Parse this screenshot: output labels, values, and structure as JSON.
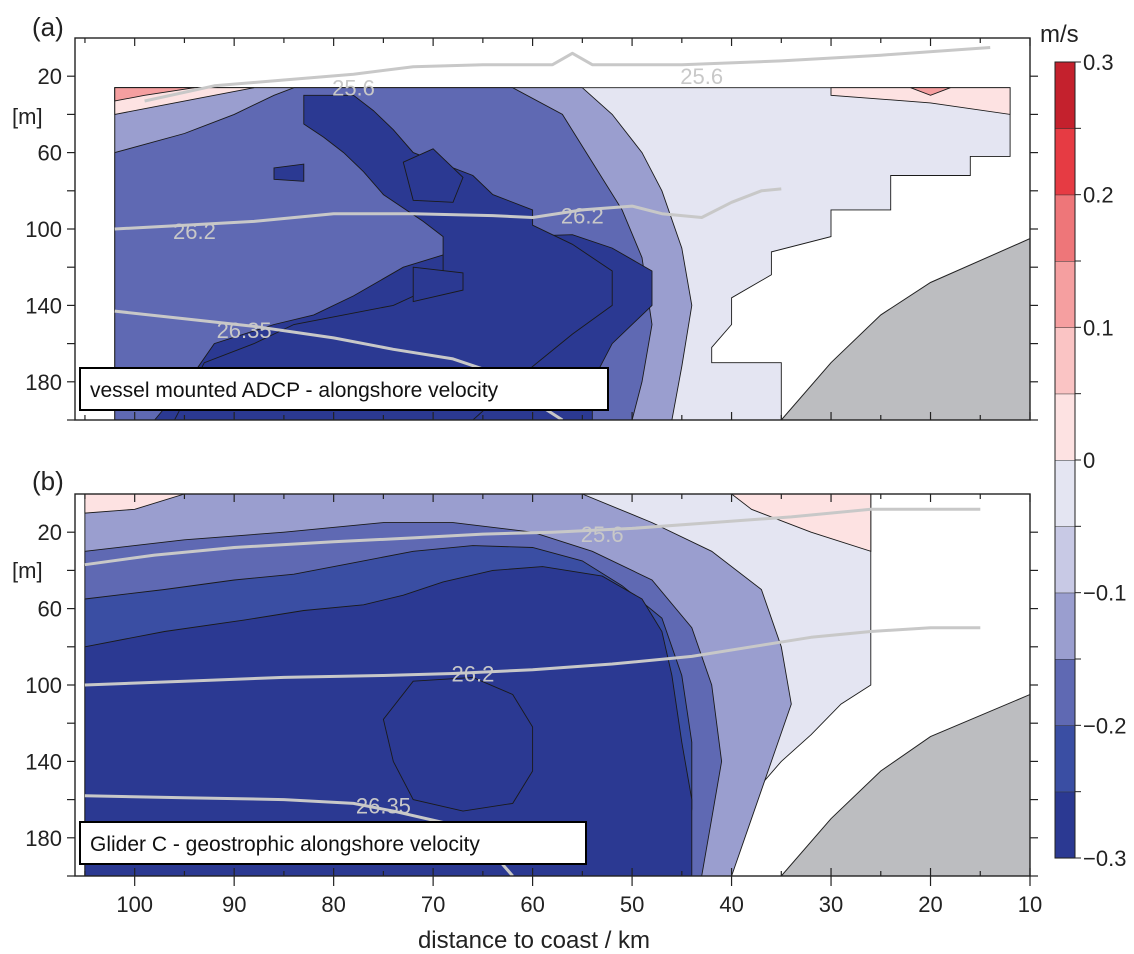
{
  "chart_data": [
    {
      "panel_label": "(a)",
      "type": "contour",
      "caption": "vessel mounted ADCP - alongshore velocity",
      "xlim": [
        106,
        10
      ],
      "ylim": [
        200,
        0
      ],
      "depth_ticks": [
        "20",
        "60",
        "100",
        "140",
        "180"
      ],
      "depth_unit": "[m]",
      "data_extent_x": [
        102,
        12
      ],
      "data_top_depth": 26,
      "isopycnals": [
        {
          "label": "25.6",
          "points": [
            [
              99,
              33
            ],
            [
              92,
              25
            ],
            [
              85,
              22
            ],
            [
              78,
              19
            ],
            [
              72,
              15
            ],
            [
              65,
              14
            ],
            [
              58,
              14
            ],
            [
              56,
              8
            ],
            [
              54,
              14
            ],
            [
              45,
              14
            ],
            [
              35,
              12
            ],
            [
              25,
              9
            ],
            [
              14,
              5
            ]
          ]
        },
        {
          "label": "26.2",
          "points": [
            [
              102,
              100
            ],
            [
              95,
              98
            ],
            [
              88,
              96
            ],
            [
              80,
              92
            ],
            [
              72,
              92
            ],
            [
              64,
              93
            ],
            [
              60,
              94
            ],
            [
              55,
              90
            ],
            [
              50,
              88
            ],
            [
              47,
              92
            ],
            [
              43,
              94
            ],
            [
              40,
              86
            ],
            [
              37,
              80
            ],
            [
              35,
              79
            ]
          ]
        },
        {
          "label": "26.35",
          "points": [
            [
              102,
              143
            ],
            [
              95,
              147
            ],
            [
              88,
              151
            ],
            [
              80,
              157
            ],
            [
              74,
              163
            ],
            [
              68,
              168
            ],
            [
              64,
              175
            ],
            [
              60,
              190
            ],
            [
              57,
              200
            ]
          ]
        }
      ],
      "isopycnal_label_positions": [
        [
          78,
          26
        ],
        [
          43,
          20
        ],
        [
          94,
          101
        ],
        [
          55,
          93
        ],
        [
          89,
          153
        ]
      ],
      "bathymetry": [
        [
          35,
          200
        ],
        [
          30,
          170
        ],
        [
          25,
          145
        ],
        [
          20,
          128
        ],
        [
          10,
          105
        ],
        [
          10,
          200
        ]
      ],
      "velocity_levels": [
        {
          "max": -0.25,
          "region": [
            [
              98,
              200
            ],
            [
              94,
              175
            ],
            [
              92,
              160
            ],
            [
              86,
              150
            ],
            [
              82,
              145
            ],
            [
              78,
              135
            ],
            [
              73,
              120
            ],
            [
              68,
              112
            ],
            [
              62,
              104
            ],
            [
              56,
              103
            ],
            [
              52,
              110
            ],
            [
              48,
              122
            ],
            [
              48,
              140
            ],
            [
              52,
              160
            ],
            [
              54,
              180
            ],
            [
              54,
              200
            ]
          ]
        },
        {
          "max": -0.25,
          "region": [
            [
              83,
              45
            ],
            [
              81,
              52
            ],
            [
              79,
              60
            ],
            [
              77,
              70
            ],
            [
              75,
              82
            ],
            [
              71,
              96
            ],
            [
              69,
              104
            ],
            [
              69,
              128
            ],
            [
              74,
              140
            ],
            [
              84,
              150
            ],
            [
              88,
              160
            ],
            [
              93,
              170
            ],
            [
              96,
              200
            ],
            [
              66,
              200
            ],
            [
              60,
              172
            ],
            [
              56,
              155
            ],
            [
              52,
              140
            ],
            [
              52,
              122
            ],
            [
              56,
              108
            ],
            [
              60,
              98
            ],
            [
              60,
              90
            ],
            [
              64,
              82
            ],
            [
              66,
              72
            ],
            [
              72,
              60
            ],
            [
              74,
              48
            ],
            [
              76,
              38
            ],
            [
              78,
              30
            ],
            [
              83,
              30
            ]
          ]
        },
        {
          "max": -0.3,
          "region": [
            [
              73,
              65
            ],
            [
              70,
              58
            ],
            [
              67,
              73
            ],
            [
              68,
              86
            ],
            [
              72,
              85
            ]
          ]
        },
        {
          "max": -0.3,
          "region": [
            [
              72,
              120
            ],
            [
              67,
              123
            ],
            [
              67,
              132
            ],
            [
              72,
              138
            ]
          ]
        },
        {
          "max": -0.3,
          "region": [
            [
              86,
              68
            ],
            [
              83,
              66
            ],
            [
              83,
              75
            ],
            [
              86,
              74
            ]
          ]
        }
      ]
    },
    {
      "panel_label": "(b)",
      "type": "contour",
      "caption": "Glider C - geostrophic alongshore velocity",
      "xlim": [
        106,
        10
      ],
      "ylim": [
        200,
        0
      ],
      "depth_ticks": [
        "20",
        "60",
        "100",
        "140",
        "180"
      ],
      "depth_unit": "[m]",
      "data_extent_x": [
        105,
        26
      ],
      "data_top_depth": 0,
      "isopycnals": [
        {
          "label": "25.6",
          "points": [
            [
              105,
              37
            ],
            [
              98,
              32
            ],
            [
              90,
              28
            ],
            [
              80,
              25
            ],
            [
              72,
              23
            ],
            [
              65,
              21
            ],
            [
              58,
              20
            ],
            [
              50,
              18
            ],
            [
              42,
              15
            ],
            [
              34,
              12
            ],
            [
              26,
              8
            ],
            [
              15,
              8
            ]
          ]
        },
        {
          "label": "26.2",
          "points": [
            [
              105,
              100
            ],
            [
              95,
              98
            ],
            [
              85,
              96
            ],
            [
              75,
              95
            ],
            [
              68,
              94
            ],
            [
              60,
              92
            ],
            [
              52,
              89
            ],
            [
              44,
              85
            ],
            [
              38,
              80
            ],
            [
              32,
              75
            ],
            [
              26,
              72
            ],
            [
              20,
              70
            ],
            [
              15,
              70
            ]
          ]
        },
        {
          "label": "26.35",
          "points": [
            [
              105,
              158
            ],
            [
              95,
              159
            ],
            [
              85,
              160
            ],
            [
              78,
              162
            ],
            [
              74,
              166
            ],
            [
              69,
              172
            ],
            [
              66,
              178
            ],
            [
              64,
              188
            ],
            [
              62,
              200
            ]
          ]
        }
      ],
      "isopycnal_label_positions": [
        [
          53,
          21
        ],
        [
          66,
          94
        ],
        [
          75,
          163
        ]
      ],
      "bathymetry": [
        [
          35,
          200
        ],
        [
          30,
          170
        ],
        [
          25,
          145
        ],
        [
          20,
          127
        ],
        [
          10,
          105
        ],
        [
          10,
          200
        ]
      ],
      "velocity_levels": [
        {
          "max": -0.25,
          "region": [
            [
              105,
              80
            ],
            [
              97,
              72
            ],
            [
              89,
              66
            ],
            [
              83,
              61
            ],
            [
              77,
              58
            ],
            [
              73,
              53
            ],
            [
              69,
              46
            ],
            [
              64,
              40
            ],
            [
              59,
              38
            ],
            [
              53,
              43
            ],
            [
              49,
              55
            ],
            [
              47,
              72
            ],
            [
              46,
              95
            ],
            [
              45,
              130
            ],
            [
              44,
              160
            ],
            [
              44,
              200
            ],
            [
              105,
              200
            ]
          ]
        },
        {
          "max": -0.3,
          "region": [
            [
              72,
              98
            ],
            [
              66,
              96
            ],
            [
              62,
              105
            ],
            [
              60,
              122
            ],
            [
              60,
              145
            ],
            [
              62,
              162
            ],
            [
              67,
              166
            ],
            [
              72,
              160
            ],
            [
              74,
              140
            ],
            [
              75,
              118
            ]
          ]
        }
      ]
    }
  ],
  "x_axis": {
    "label": "distance to coast / km",
    "ticks": [
      "100",
      "90",
      "80",
      "70",
      "60",
      "50",
      "40",
      "30",
      "20",
      "10"
    ]
  },
  "colorbar": {
    "unit": "m/s",
    "range": [
      -0.3,
      0.3
    ],
    "step": 0.05,
    "tick_labels": [
      "0.3",
      "0.2",
      "0.1",
      "0",
      "−0.1",
      "−0.2",
      "−0.3"
    ],
    "colors": [
      "#2b3992",
      "#3a4ea3",
      "#5f69b3",
      "#9a9ecf",
      "#c8c9e5",
      "#e4e5f2",
      "#fde2e2",
      "#fac4c4",
      "#f59fa0",
      "#ee7679",
      "#e63b43",
      "#c4212d"
    ]
  }
}
